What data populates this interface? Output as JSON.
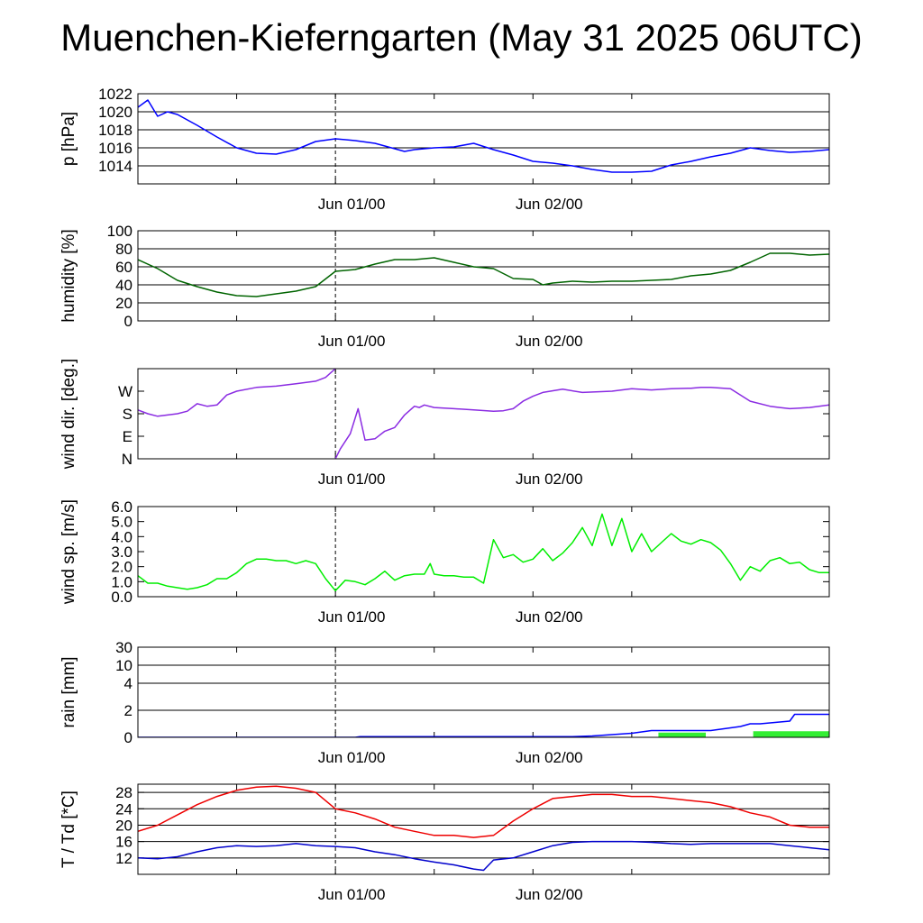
{
  "title": "Muenchen-Kieferngarten (May 31 2025 06UTC)",
  "x_tick_labels": [
    "Jun 01/00",
    "Jun 02/00"
  ],
  "chart_data": [
    {
      "type": "line",
      "ylabel": "p [hPa]",
      "ylim": [
        1012,
        1022
      ],
      "yticks": [
        1014,
        1016,
        1018,
        1020,
        1022
      ],
      "ytick_labels": [
        "1014",
        "1016",
        "1018",
        "1020",
        "1022"
      ],
      "grid": true,
      "series": [
        {
          "color": "#0000ff",
          "x": [
            0,
            1,
            2,
            3,
            4,
            6,
            8,
            10,
            12,
            14,
            16,
            18,
            20,
            22,
            24,
            26,
            27,
            28,
            30,
            32,
            34,
            36,
            38,
            40,
            42,
            44,
            46,
            48,
            50,
            52,
            54,
            56,
            58,
            60,
            62,
            64,
            66,
            68,
            70
          ],
          "y": [
            1020.5,
            1021.3,
            1019.5,
            1020.0,
            1019.7,
            1018.5,
            1017.2,
            1016.0,
            1015.4,
            1015.3,
            1015.8,
            1016.7,
            1017.0,
            1016.8,
            1016.5,
            1015.9,
            1015.6,
            1015.8,
            1016.0,
            1016.1,
            1016.5,
            1015.8,
            1015.2,
            1014.5,
            1014.3,
            1014.0,
            1013.6,
            1013.3,
            1013.3,
            1013.4,
            1014.1,
            1014.5,
            1015.0,
            1015.4,
            1016.0,
            1015.7,
            1015.5,
            1015.6,
            1015.8
          ]
        }
      ]
    },
    {
      "type": "line",
      "ylabel": "humidity [%]",
      "ylim": [
        0,
        100
      ],
      "yticks": [
        0,
        20,
        40,
        60,
        80,
        100
      ],
      "ytick_labels": [
        "0",
        "20",
        "40",
        "60",
        "80",
        "100"
      ],
      "grid": true,
      "series": [
        {
          "color": "#006400",
          "x": [
            0,
            2,
            4,
            6,
            8,
            10,
            12,
            14,
            16,
            18,
            20,
            22,
            24,
            26,
            28,
            30,
            32,
            34,
            36,
            38,
            40,
            41,
            42,
            44,
            46,
            48,
            50,
            52,
            54,
            56,
            58,
            60,
            62,
            64,
            66,
            68,
            70
          ],
          "y": [
            68,
            58,
            45,
            38,
            32,
            28,
            27,
            30,
            33,
            38,
            55,
            57,
            63,
            68,
            68,
            70,
            65,
            60,
            58,
            47,
            46,
            40,
            42,
            44,
            43,
            44,
            44,
            45,
            46,
            50,
            52,
            56,
            65,
            75,
            75,
            73,
            74
          ]
        }
      ]
    },
    {
      "type": "line",
      "ylabel": "wind dir. [deg.]",
      "ylim": [
        0,
        360
      ],
      "yticks": [
        0,
        90,
        180,
        270
      ],
      "ytick_labels": [
        "N",
        "E",
        "S",
        "W"
      ],
      "grid": false,
      "series": [
        {
          "color": "#8a2be2",
          "x": [
            0,
            1,
            2,
            4,
            5,
            6,
            7,
            8,
            9,
            10,
            12,
            14,
            16,
            18,
            19,
            20
          ],
          "y": [
            195,
            180,
            170,
            180,
            190,
            220,
            210,
            215,
            255,
            270,
            285,
            290,
            300,
            310,
            325,
            360
          ]
        },
        {
          "color": "#8a2be2",
          "x": [
            20,
            20.5,
            21.5,
            22.3,
            23,
            24,
            25,
            26,
            27,
            28,
            28.5,
            29,
            30,
            32,
            34,
            36,
            37,
            38,
            39,
            40,
            41,
            43,
            45,
            48,
            50,
            52,
            54,
            56,
            57,
            58,
            60,
            62,
            64,
            65,
            66,
            68,
            70
          ],
          "y": [
            0,
            40,
            100,
            200,
            75,
            80,
            110,
            125,
            175,
            210,
            205,
            215,
            205,
            200,
            195,
            190,
            192,
            200,
            230,
            250,
            265,
            278,
            265,
            270,
            280,
            275,
            280,
            282,
            285,
            285,
            280,
            230,
            210,
            205,
            200,
            205,
            215
          ]
        }
      ]
    },
    {
      "type": "line",
      "ylabel": "wind sp. [m/s]",
      "ylim": [
        0,
        6
      ],
      "yticks": [
        0,
        1,
        2,
        3,
        4,
        5,
        6
      ],
      "ytick_labels": [
        "0.0",
        "1.0",
        "2.0",
        "3.0",
        "4.0",
        "5.0",
        "6.0"
      ],
      "grid": false,
      "series": [
        {
          "color": "#00ee00",
          "x": [
            0,
            1,
            2,
            3,
            4,
            5,
            6,
            7,
            8,
            9,
            10,
            11,
            12,
            13,
            14,
            15,
            16,
            17,
            18,
            19,
            20,
            21,
            22,
            23,
            24,
            25,
            26,
            27,
            28,
            29,
            29.6,
            30,
            31,
            32,
            33,
            34,
            35,
            36,
            37,
            38,
            39,
            40,
            41,
            42,
            43,
            44,
            45,
            46,
            47,
            48,
            49,
            50,
            51,
            52,
            53,
            54,
            55,
            56,
            57,
            58,
            59,
            60,
            61,
            62,
            63,
            64,
            65,
            66,
            67,
            68,
            69,
            70
          ],
          "y": [
            1.4,
            0.9,
            0.9,
            0.7,
            0.6,
            0.5,
            0.6,
            0.8,
            1.2,
            1.2,
            1.6,
            2.2,
            2.5,
            2.5,
            2.4,
            2.4,
            2.2,
            2.4,
            2.2,
            1.2,
            0.4,
            1.1,
            1.0,
            0.8,
            1.2,
            1.7,
            1.1,
            1.4,
            1.5,
            1.5,
            2.2,
            1.5,
            1.4,
            1.4,
            1.3,
            1.3,
            0.9,
            3.8,
            2.6,
            2.8,
            2.3,
            2.5,
            3.2,
            2.4,
            2.9,
            3.6,
            4.6,
            3.4,
            5.5,
            3.4,
            5.2,
            3.0,
            4.2,
            3.0,
            3.6,
            4.2,
            3.7,
            3.5,
            3.8,
            3.6,
            3.1,
            2.2,
            1.1,
            2.0,
            1.7,
            2.4,
            2.6,
            2.2,
            2.3,
            1.8,
            1.6,
            1.6
          ]
        }
      ]
    },
    {
      "type": "line",
      "ylabel": "rain [mm]",
      "ylim": [
        0,
        30
      ],
      "yticks": [
        0,
        2,
        4,
        10,
        30
      ],
      "ytick_labels": [
        "0",
        "2",
        "4",
        "10",
        "30"
      ],
      "scale": "nonlinear",
      "grid": true,
      "series": [
        {
          "color": "#0000ff",
          "x": [
            0,
            22,
            22.5,
            44,
            46,
            50,
            52,
            54,
            58,
            61,
            62,
            63,
            66,
            66.5,
            70
          ],
          "y": [
            0,
            0,
            0.05,
            0.05,
            0.1,
            0.3,
            0.5,
            0.5,
            0.5,
            0.8,
            1.0,
            1.0,
            1.2,
            1.7,
            1.7
          ]
        }
      ],
      "bars": {
        "color": "#33ee33",
        "x_start": [
          52.7,
          62.3
        ],
        "x_end": [
          57.5,
          70
        ],
        "values": [
          0.35,
          0.45
        ]
      }
    },
    {
      "type": "line",
      "ylabel": "T / Td [*C]",
      "ylim": [
        8,
        30
      ],
      "yticks": [
        12,
        16,
        20,
        24,
        28
      ],
      "ytick_labels": [
        "12",
        "16",
        "20",
        "24",
        "28"
      ],
      "grid": true,
      "series": [
        {
          "name": "T",
          "color": "#ee0000",
          "x": [
            0,
            2,
            4,
            6,
            8,
            10,
            12,
            14,
            16,
            18,
            20,
            22,
            24,
            26,
            28,
            30,
            32,
            34,
            36,
            38,
            40,
            42,
            44,
            46,
            48,
            50,
            52,
            54,
            56,
            58,
            60,
            62,
            64,
            66,
            68,
            70
          ],
          "y": [
            18.5,
            20.0,
            22.5,
            25.0,
            27.0,
            28.5,
            29.3,
            29.5,
            29.0,
            28.0,
            24.0,
            23.0,
            21.5,
            19.5,
            18.5,
            17.5,
            17.5,
            17.0,
            17.5,
            21.0,
            24.0,
            26.5,
            27.0,
            27.5,
            27.5,
            27.0,
            27.0,
            26.5,
            26.0,
            25.5,
            24.5,
            23.0,
            22.0,
            20.0,
            19.5,
            19.5
          ]
        },
        {
          "name": "Td",
          "color": "#0000cc",
          "x": [
            0,
            2,
            4,
            6,
            8,
            10,
            12,
            14,
            16,
            18,
            20,
            22,
            24,
            26,
            28,
            30,
            32,
            34,
            35,
            36,
            38,
            40,
            42,
            44,
            46,
            48,
            50,
            52,
            54,
            56,
            58,
            60,
            62,
            64,
            66,
            68,
            70
          ],
          "y": [
            12.0,
            11.8,
            12.3,
            13.5,
            14.5,
            15.0,
            14.8,
            15.0,
            15.5,
            15.0,
            14.8,
            14.5,
            13.5,
            12.8,
            11.8,
            11.0,
            10.3,
            9.3,
            9.0,
            11.5,
            12.0,
            13.5,
            15.0,
            15.8,
            16.0,
            16.0,
            16.0,
            15.8,
            15.5,
            15.3,
            15.5,
            15.5,
            15.5,
            15.5,
            15.0,
            14.5,
            14.0
          ]
        }
      ]
    }
  ]
}
